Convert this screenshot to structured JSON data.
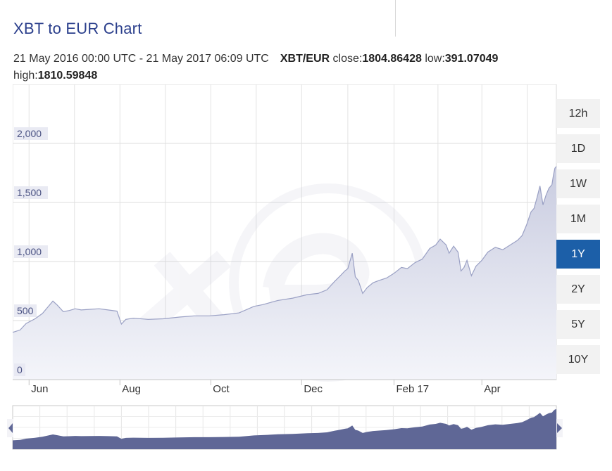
{
  "header": {
    "title": "XBT to EUR Chart",
    "date_range": "21 May 2016 00:00 UTC - 21 May 2017 06:09 UTC",
    "pair": "XBT/EUR",
    "close_label": "close:",
    "close_value": "1804.86428",
    "low_label": "low:",
    "low_value": "391.07049",
    "high_label": "high:",
    "high_value": "1810.59848"
  },
  "range_buttons": [
    {
      "label": "12h",
      "active": false
    },
    {
      "label": "1D",
      "active": false
    },
    {
      "label": "1W",
      "active": false
    },
    {
      "label": "1M",
      "active": false
    },
    {
      "label": "1Y",
      "active": true
    },
    {
      "label": "2Y",
      "active": false
    },
    {
      "label": "5Y",
      "active": false
    },
    {
      "label": "10Y",
      "active": false
    }
  ],
  "colors": {
    "line": "#9aa0c4",
    "area_top": "#c9cce0",
    "area_bottom": "#f4f5fa",
    "navigator_fill": "#5f6796",
    "active_button": "#1c5fa8",
    "title": "#2b3f8c",
    "y_label_bg": "#e7e8f2",
    "y_label_text": "#4a5283"
  },
  "chart_data": {
    "type": "area",
    "title": "XBT to EUR Chart",
    "xlabel": "",
    "ylabel": "",
    "ylim": [
      0,
      2500
    ],
    "y_ticks": [
      0,
      500,
      1000,
      1500,
      2000
    ],
    "y_tick_labels": [
      "0",
      "500",
      "1,000",
      "1,500",
      "2,000"
    ],
    "x_ticks": [
      {
        "date": "2016-06-01",
        "label": "Jun"
      },
      {
        "date": "2016-08-01",
        "label": "Aug"
      },
      {
        "date": "2016-10-01",
        "label": "Oct"
      },
      {
        "date": "2016-12-01",
        "label": "Dec"
      },
      {
        "date": "2017-02-01",
        "label": "Feb 17"
      },
      {
        "date": "2017-04-01",
        "label": "Apr"
      }
    ],
    "x_range": [
      "2016-05-21",
      "2017-05-21"
    ],
    "grid": true,
    "series": [
      {
        "values": [
          [
            "2016-05-21",
            400
          ],
          [
            "2016-05-26",
            420
          ],
          [
            "2016-05-30",
            475
          ],
          [
            "2016-06-05",
            515
          ],
          [
            "2016-06-10",
            560
          ],
          [
            "2016-06-14",
            620
          ],
          [
            "2016-06-17",
            665
          ],
          [
            "2016-06-20",
            630
          ],
          [
            "2016-06-24",
            575
          ],
          [
            "2016-06-28",
            585
          ],
          [
            "2016-07-02",
            600
          ],
          [
            "2016-07-06",
            590
          ],
          [
            "2016-07-12",
            595
          ],
          [
            "2016-07-18",
            600
          ],
          [
            "2016-07-24",
            590
          ],
          [
            "2016-07-30",
            580
          ],
          [
            "2016-08-02",
            470
          ],
          [
            "2016-08-05",
            510
          ],
          [
            "2016-08-10",
            520
          ],
          [
            "2016-08-20",
            510
          ],
          [
            "2016-08-30",
            515
          ],
          [
            "2016-09-10",
            530
          ],
          [
            "2016-09-20",
            540
          ],
          [
            "2016-09-30",
            540
          ],
          [
            "2016-10-10",
            550
          ],
          [
            "2016-10-20",
            565
          ],
          [
            "2016-10-30",
            620
          ],
          [
            "2016-11-05",
            635
          ],
          [
            "2016-11-15",
            670
          ],
          [
            "2016-11-25",
            690
          ],
          [
            "2016-12-05",
            720
          ],
          [
            "2016-12-12",
            730
          ],
          [
            "2016-12-18",
            760
          ],
          [
            "2016-12-23",
            830
          ],
          [
            "2016-12-27",
            880
          ],
          [
            "2016-12-30",
            920
          ],
          [
            "2017-01-01",
            940
          ],
          [
            "2017-01-04",
            1070
          ],
          [
            "2017-01-06",
            870
          ],
          [
            "2017-01-08",
            840
          ],
          [
            "2017-01-11",
            730
          ],
          [
            "2017-01-14",
            780
          ],
          [
            "2017-01-18",
            820
          ],
          [
            "2017-01-22",
            840
          ],
          [
            "2017-01-27",
            860
          ],
          [
            "2017-02-01",
            900
          ],
          [
            "2017-02-06",
            950
          ],
          [
            "2017-02-10",
            940
          ],
          [
            "2017-02-15",
            990
          ],
          [
            "2017-02-20",
            1020
          ],
          [
            "2017-02-25",
            1110
          ],
          [
            "2017-03-01",
            1140
          ],
          [
            "2017-03-04",
            1190
          ],
          [
            "2017-03-08",
            1140
          ],
          [
            "2017-03-10",
            1070
          ],
          [
            "2017-03-13",
            1130
          ],
          [
            "2017-03-16",
            1080
          ],
          [
            "2017-03-18",
            920
          ],
          [
            "2017-03-20",
            950
          ],
          [
            "2017-03-22",
            1010
          ],
          [
            "2017-03-25",
            880
          ],
          [
            "2017-03-28",
            960
          ],
          [
            "2017-04-01",
            1010
          ],
          [
            "2017-04-05",
            1080
          ],
          [
            "2017-04-10",
            1120
          ],
          [
            "2017-04-15",
            1100
          ],
          [
            "2017-04-20",
            1140
          ],
          [
            "2017-04-25",
            1180
          ],
          [
            "2017-04-28",
            1220
          ],
          [
            "2017-05-01",
            1310
          ],
          [
            "2017-05-04",
            1420
          ],
          [
            "2017-05-06",
            1450
          ],
          [
            "2017-05-08",
            1540
          ],
          [
            "2017-05-10",
            1640
          ],
          [
            "2017-05-12",
            1480
          ],
          [
            "2017-05-14",
            1560
          ],
          [
            "2017-05-16",
            1620
          ],
          [
            "2017-05-18",
            1650
          ],
          [
            "2017-05-19",
            1730
          ],
          [
            "2017-05-20",
            1790
          ],
          [
            "2017-05-21",
            1805
          ]
        ]
      }
    ]
  }
}
